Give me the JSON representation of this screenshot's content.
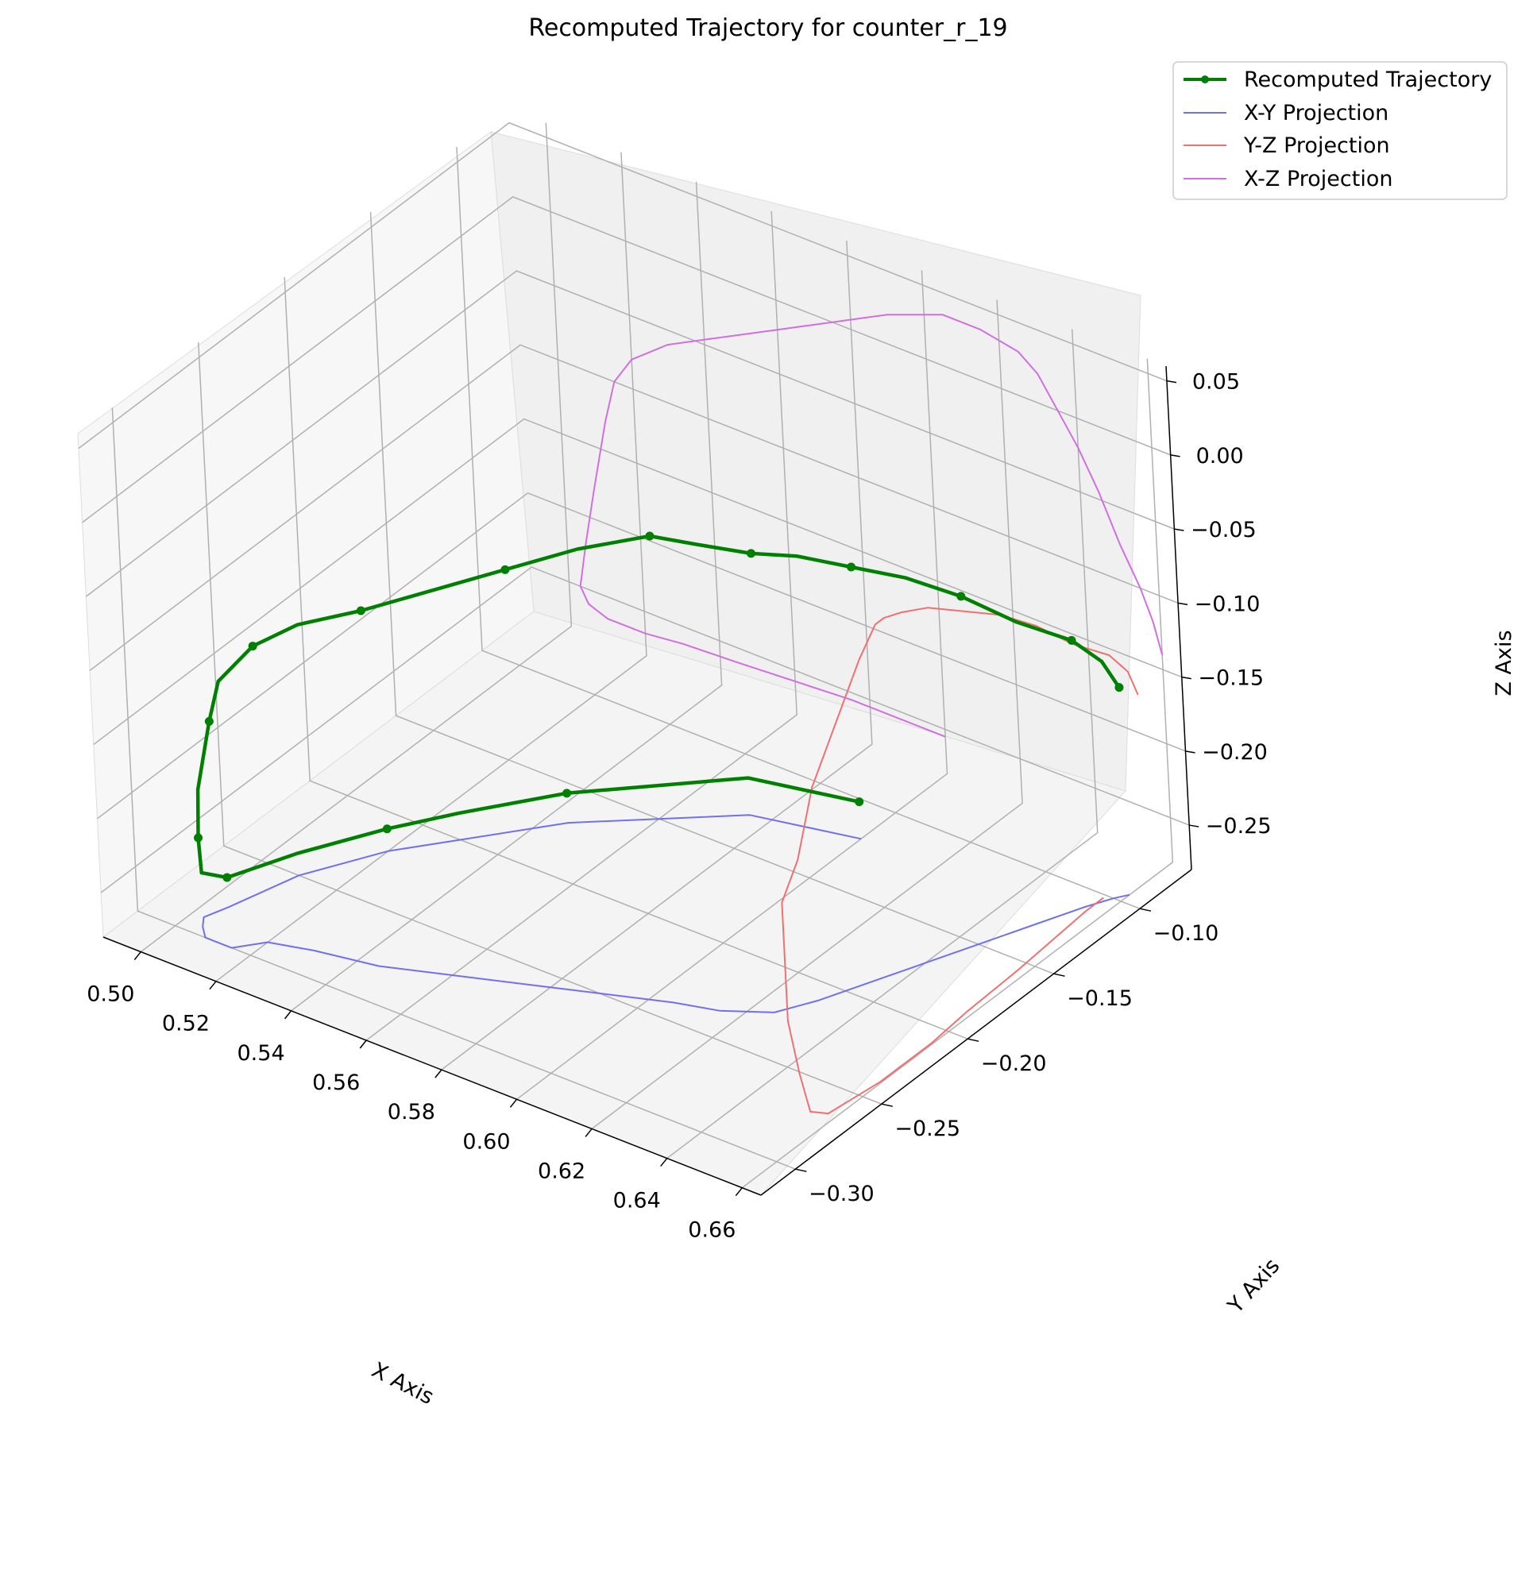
{
  "chart_data": {
    "type": "line-3d",
    "title": "Recomputed Trajectory for counter_r_19",
    "xlabel": "X Axis",
    "ylabel": "Y Axis",
    "zlabel": "Z Axis",
    "xlim": [
      0.49,
      0.665
    ],
    "ylim": [
      -0.32,
      -0.07
    ],
    "zlim": [
      -0.28,
      0.06
    ],
    "x_ticks": [
      "0.50",
      "0.52",
      "0.54",
      "0.56",
      "0.58",
      "0.60",
      "0.62",
      "0.64",
      "0.66"
    ],
    "y_ticks": [
      "−0.30",
      "−0.25",
      "−0.20",
      "−0.15",
      "−0.10"
    ],
    "z_ticks": [
      "−0.25",
      "−0.20",
      "−0.15",
      "−0.10",
      "−0.05",
      "0.00",
      "0.05"
    ],
    "grid": true,
    "legend_position": "upper right",
    "series": [
      {
        "name": "Recomputed Trajectory",
        "color": "#008000",
        "style": "line-with-markers"
      },
      {
        "name": "X-Y Projection",
        "color": "#7070f0",
        "style": "line"
      },
      {
        "name": "Y-Z Projection",
        "color": "#f07070",
        "style": "line"
      },
      {
        "name": "X-Z Projection",
        "color": "#d070e0",
        "style": "line"
      }
    ],
    "trajectory": [
      [
        0.6,
        -0.12,
        -0.255
      ],
      [
        0.575,
        -0.13,
        -0.255
      ],
      [
        0.545,
        -0.17,
        -0.26
      ],
      [
        0.53,
        -0.2,
        -0.262
      ],
      [
        0.52,
        -0.22,
        -0.265
      ],
      [
        0.51,
        -0.25,
        -0.265
      ],
      [
        0.505,
        -0.28,
        -0.26
      ],
      [
        0.503,
        -0.29,
        -0.25
      ],
      [
        0.505,
        -0.295,
        -0.22
      ],
      [
        0.508,
        -0.3,
        -0.18
      ],
      [
        0.512,
        -0.3,
        -0.13
      ],
      [
        0.515,
        -0.3,
        -0.1
      ],
      [
        0.52,
        -0.29,
        -0.08
      ],
      [
        0.53,
        -0.285,
        -0.06
      ],
      [
        0.545,
        -0.28,
        -0.04
      ],
      [
        0.56,
        -0.27,
        -0.02
      ],
      [
        0.575,
        -0.26,
        0.0
      ],
      [
        0.59,
        -0.25,
        0.02
      ],
      [
        0.605,
        -0.24,
        0.035
      ],
      [
        0.615,
        -0.235,
        0.035
      ],
      [
        0.625,
        -0.225,
        0.03
      ],
      [
        0.63,
        -0.21,
        0.02
      ],
      [
        0.635,
        -0.19,
        0.0
      ],
      [
        0.64,
        -0.17,
        -0.02
      ],
      [
        0.645,
        -0.15,
        -0.045
      ],
      [
        0.65,
        -0.13,
        -0.075
      ],
      [
        0.655,
        -0.11,
        -0.1
      ],
      [
        0.658,
        -0.1,
        -0.12
      ],
      [
        0.66,
        -0.095,
        -0.14
      ]
    ]
  },
  "legend": {
    "items": [
      {
        "label": "Recomputed Trajectory",
        "color": "#008000"
      },
      {
        "label": "X-Y Projection",
        "color": "#7070f0"
      },
      {
        "label": "Y-Z Projection",
        "color": "#f07070"
      },
      {
        "label": "X-Z Projection",
        "color": "#d070e0"
      }
    ]
  }
}
